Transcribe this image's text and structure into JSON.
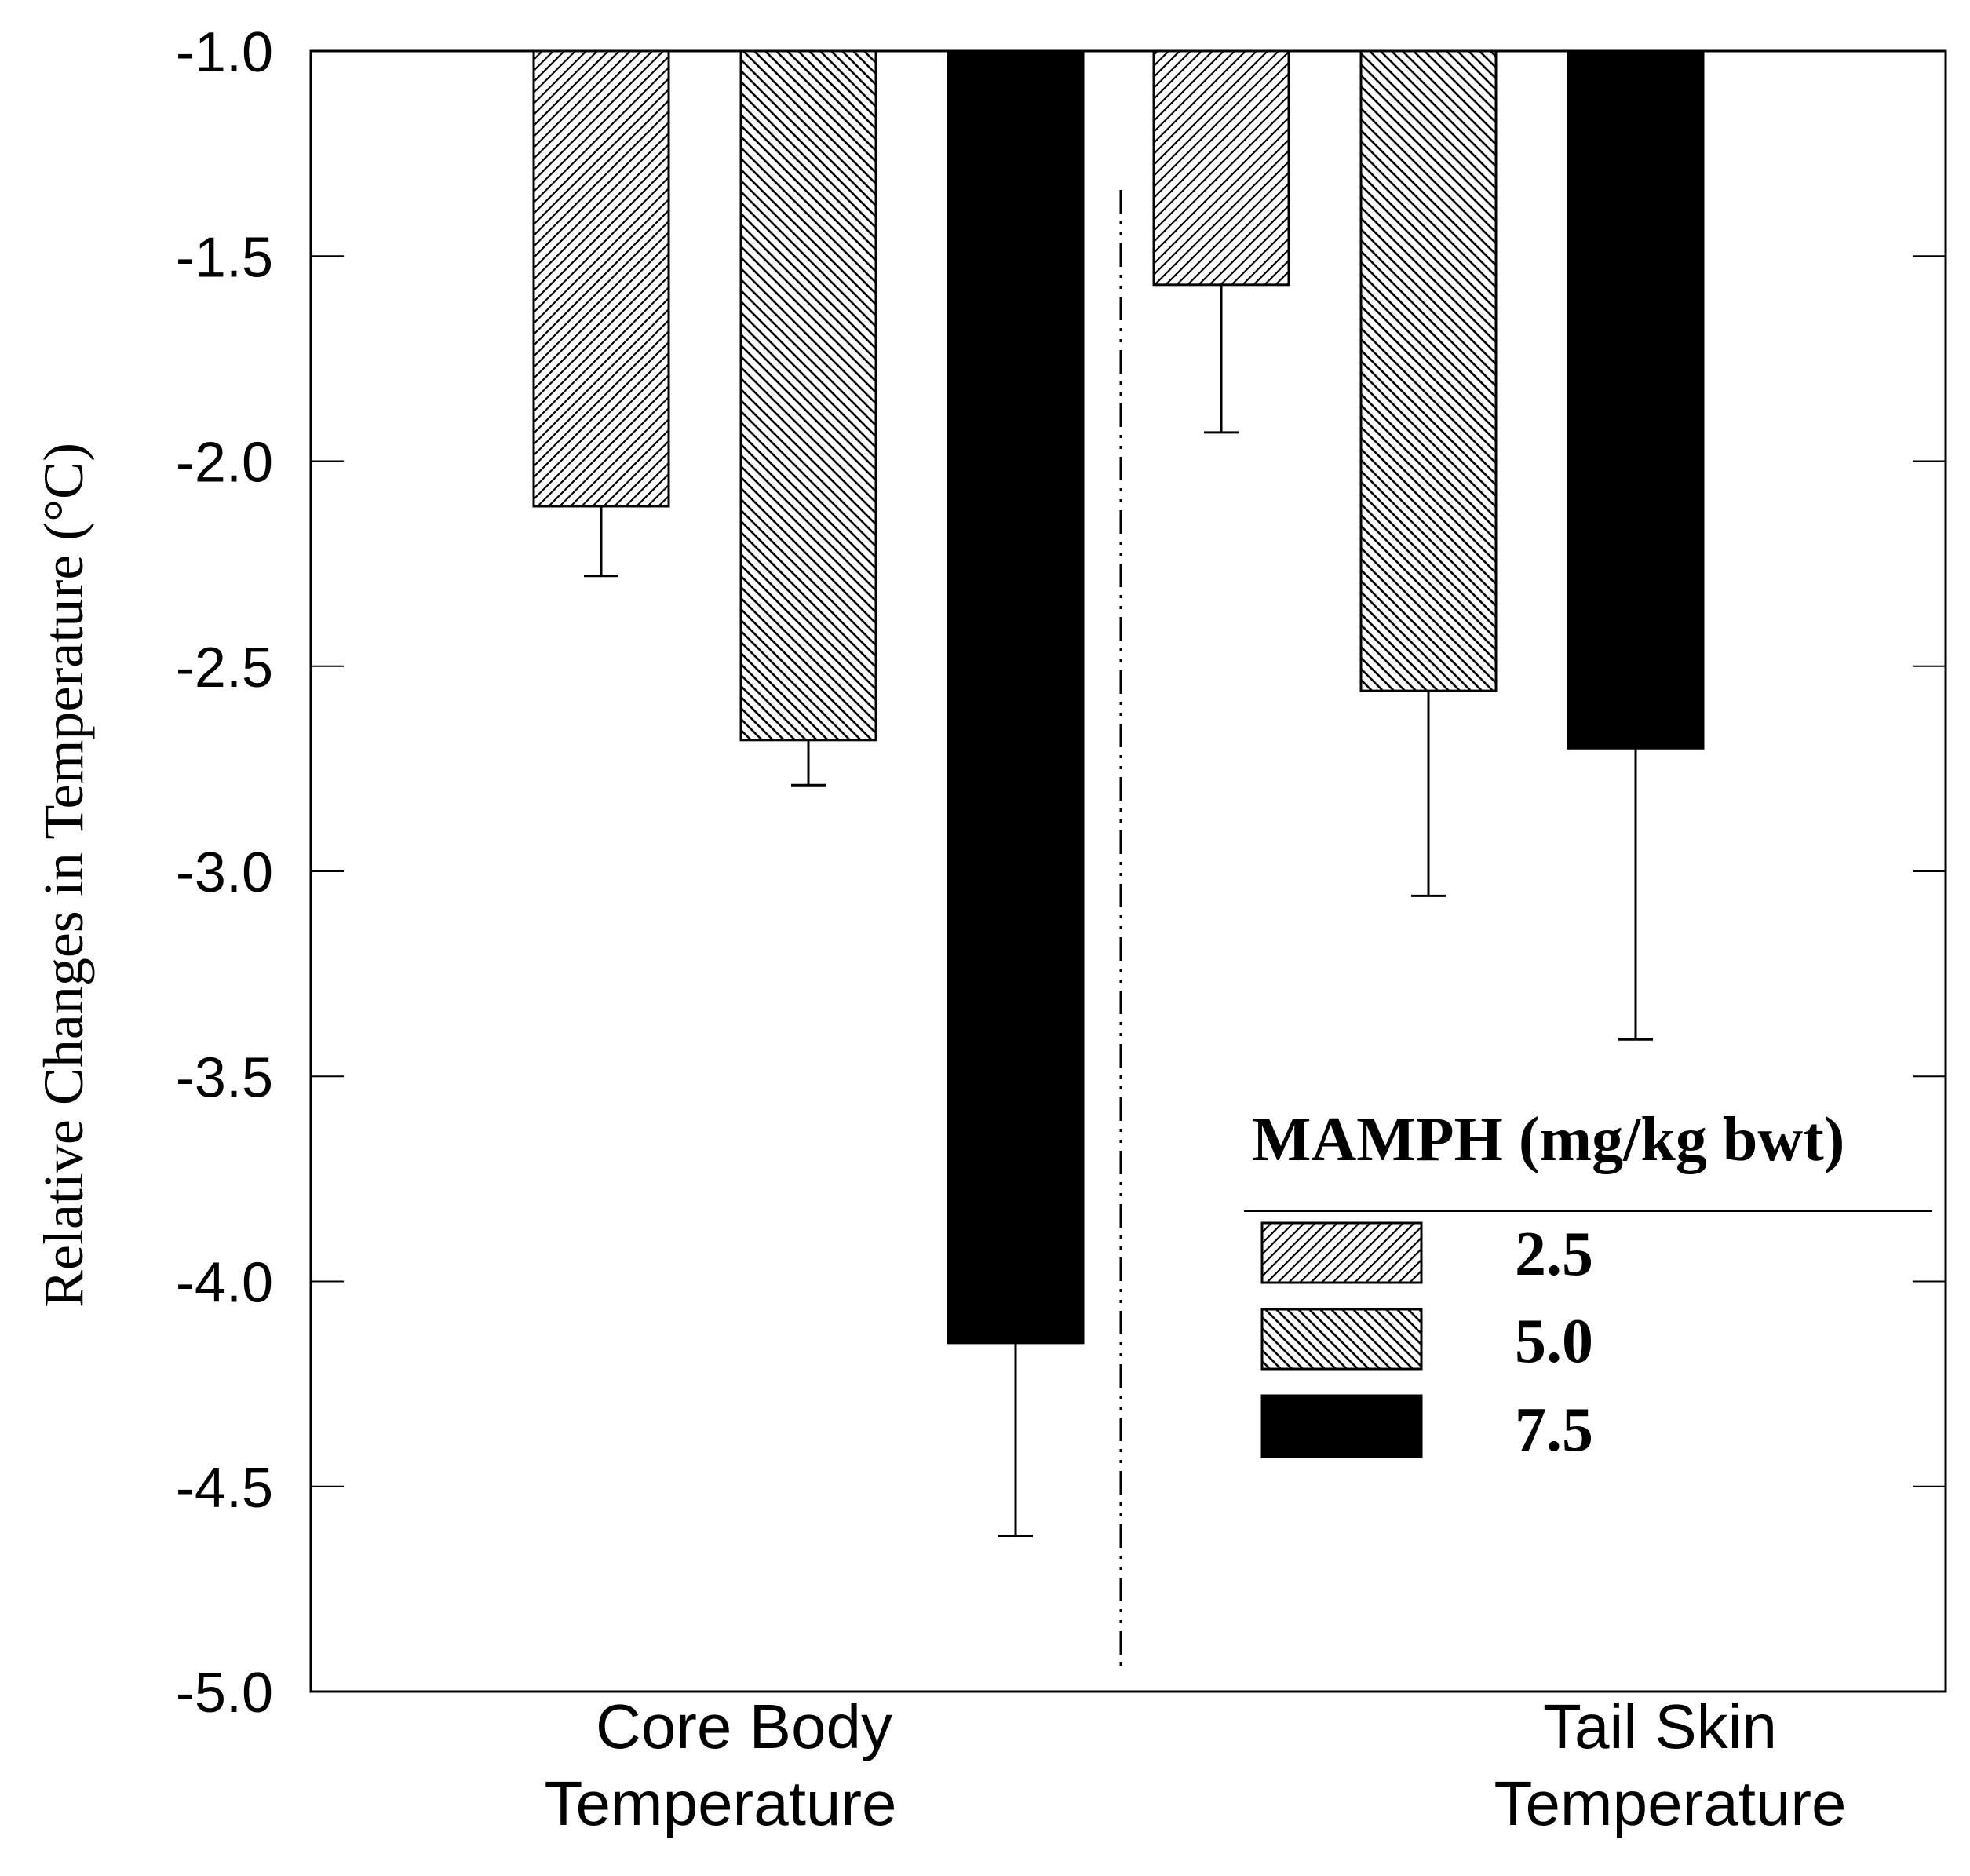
{
  "chart_data": {
    "type": "bar",
    "title": "",
    "xlabel": "",
    "ylabel": "Relative Changes in Temperature (°C)",
    "ylim": [
      -5.0,
      -1.0
    ],
    "yticks": [
      -1.0,
      -1.5,
      -2.0,
      -2.5,
      -3.0,
      -3.5,
      -4.0,
      -4.5,
      -5.0
    ],
    "ytick_labels": [
      "-1.0",
      "-1.5",
      "-2.0",
      "-2.5",
      "-3.0",
      "-3.5",
      "-4.0",
      "-4.5",
      "-5.0"
    ],
    "categories": [
      {
        "line1": "Core Body",
        "line2": "Temperature"
      },
      {
        "line1": "Tail Skin",
        "line2": "Temperature"
      }
    ],
    "legend": {
      "title": "MAMPH (mg/kg bwt)",
      "placement": "bottom-right"
    },
    "series": [
      {
        "name": "2.5",
        "pattern": "diag-up",
        "values": [
          -2.11,
          -1.57
        ],
        "errors": [
          0.17,
          0.36
        ]
      },
      {
        "name": "5.0",
        "pattern": "diag-down",
        "values": [
          -2.68,
          -2.56
        ],
        "errors": [
          0.11,
          0.5
        ]
      },
      {
        "name": "7.5",
        "pattern": "solid",
        "values": [
          -4.15,
          -2.7
        ],
        "errors": [
          0.47,
          0.71
        ]
      }
    ],
    "colors": {
      "ink": "#000000",
      "background": "#ffffff"
    }
  }
}
